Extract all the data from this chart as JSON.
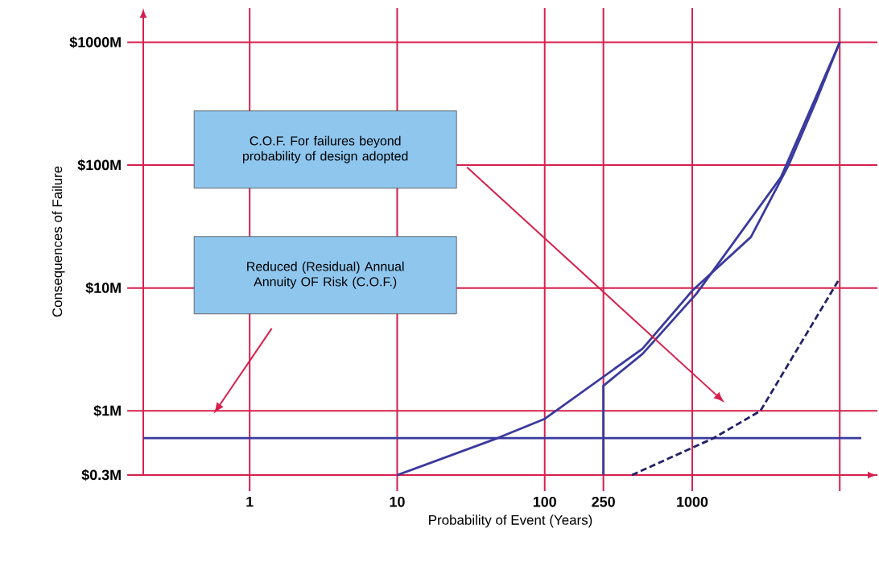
{
  "chart_data": {
    "type": "line",
    "xlabel": "Probability of Event (Years)",
    "ylabel": "Consequences of Failure",
    "log": "xy",
    "grid": true,
    "legend": false,
    "marker": "none",
    "xlim": [
      0.19,
      18000
    ],
    "ylim": [
      0.3,
      1900
    ],
    "xticks": [
      1,
      10,
      100,
      250,
      1000,
      {
        "value": 10000,
        "label": null
      }
    ],
    "yticks": [
      {
        "value": 0.3,
        "label": "$0.3M"
      },
      {
        "value": 1,
        "label": "$1M"
      },
      {
        "value": 10,
        "label": "$10M"
      },
      {
        "value": 100,
        "label": "$100M"
      },
      {
        "value": 1000,
        "label": "$1000M"
      }
    ],
    "series": [
      {
        "color": "#3a3a9e",
        "x": [
          0.19,
          14000
        ],
        "values": [
          0.6,
          0.6
        ]
      },
      {
        "color": "#3a3a9e",
        "x": [
          10,
          48,
          100,
          460,
          1000,
          2500,
          4500,
          6900,
          10000
        ],
        "values": [
          0.3,
          0.6,
          0.86,
          3.2,
          9.5,
          26,
          100,
          330,
          1000
        ]
      },
      {
        "color": "#3a3a9e",
        "x": [
          250,
          250,
          460,
          1070,
          4000,
          10000
        ],
        "values": [
          0.3,
          1.6,
          2.9,
          9,
          80,
          1000
        ]
      },
      {
        "color": "#222266",
        "line_style": "dashed",
        "x": [
          390,
          1400,
          2900,
          10000
        ],
        "values": [
          0.3,
          0.6,
          1,
          12
        ]
      }
    ],
    "annotations": [
      "C.O.F. For failures beyond probability of design adopted",
      "Reduced (Residual) Annual Annuity OF Risk (C.O.F.)"
    ]
  }
}
